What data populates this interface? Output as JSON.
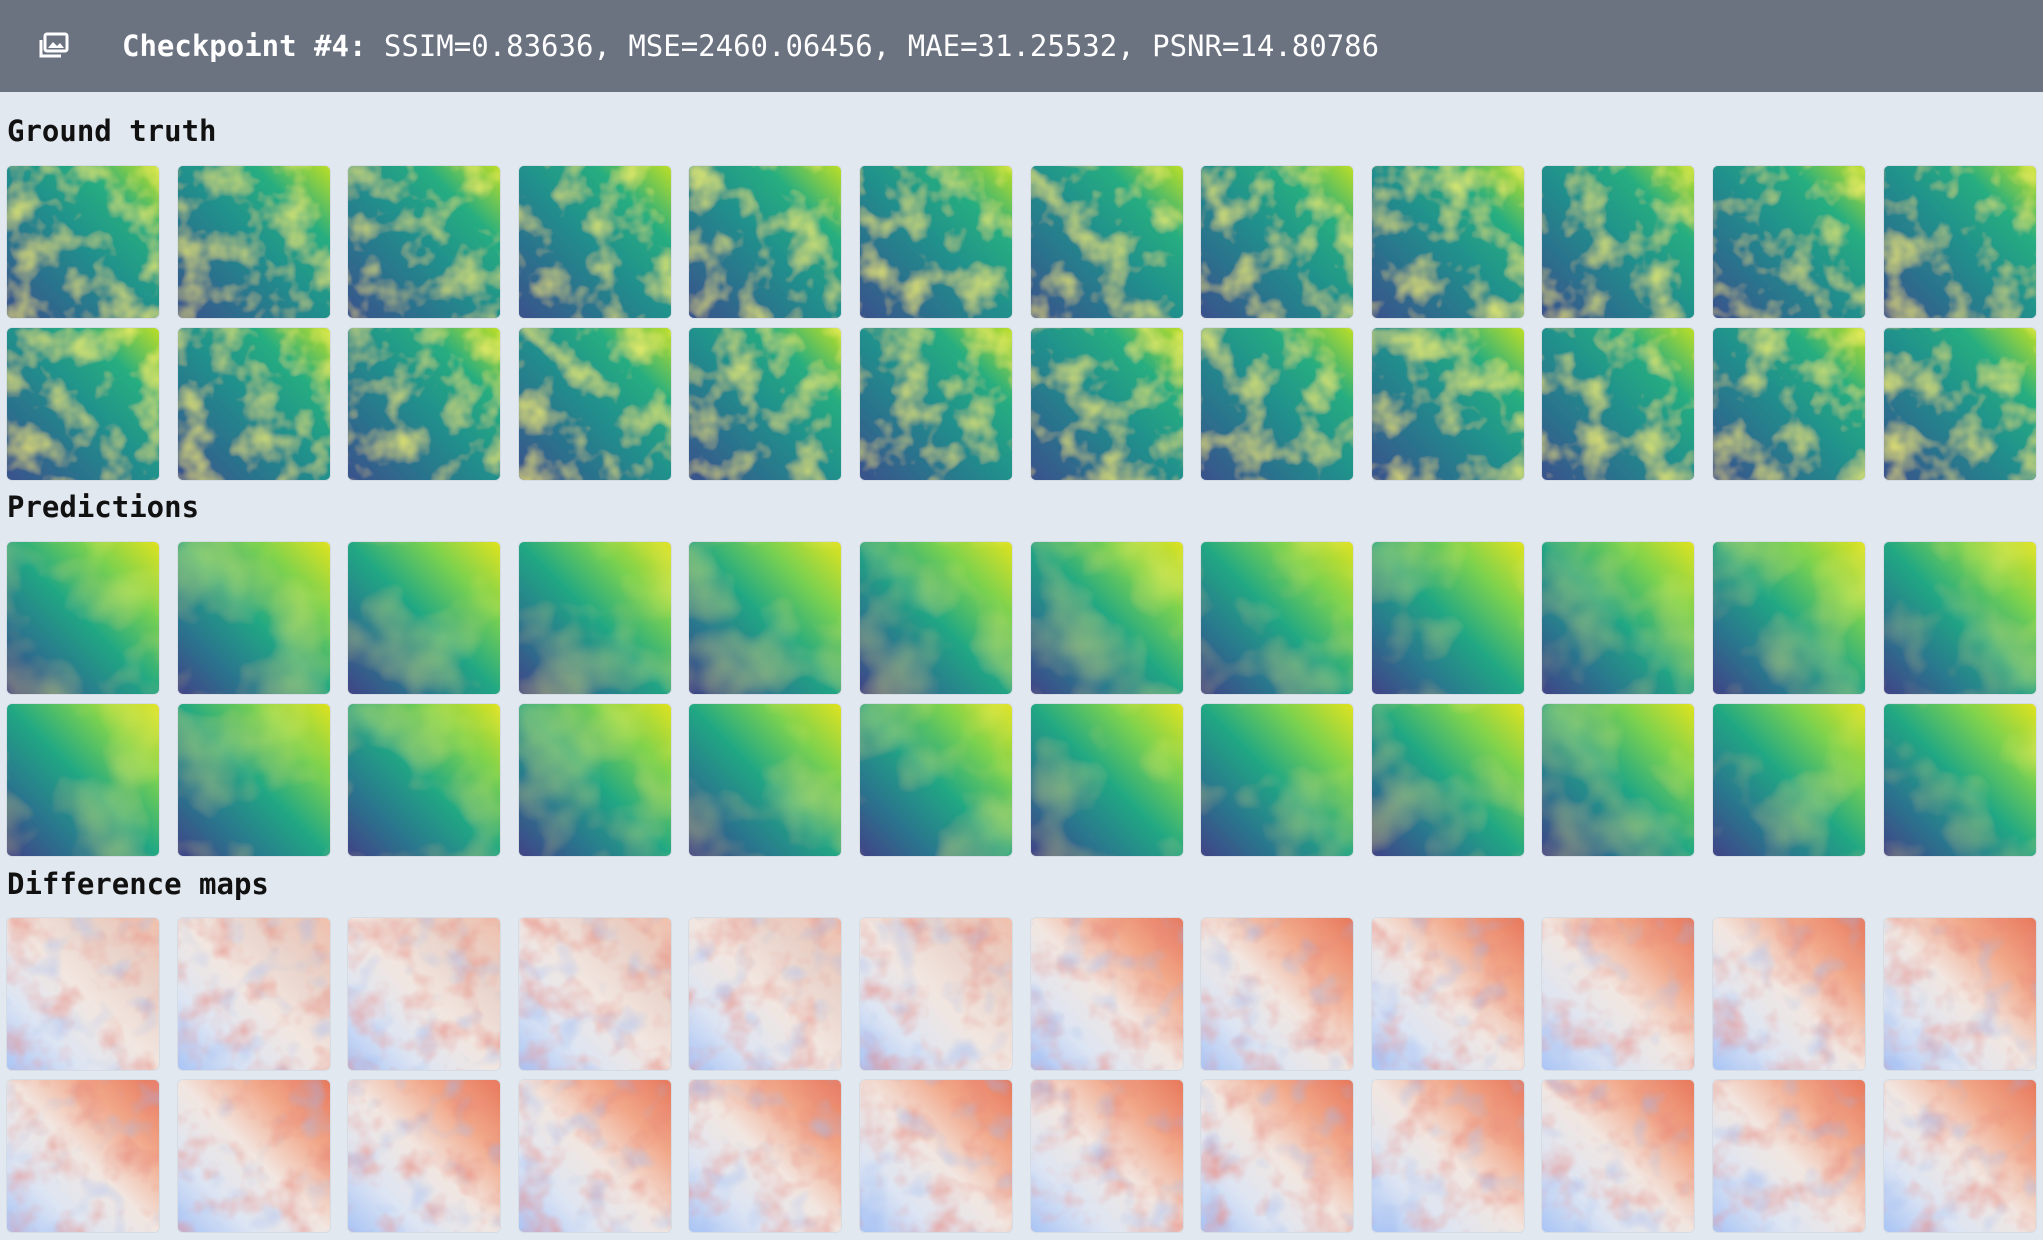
{
  "header": {
    "icon": "image-gallery-icon",
    "checkpoint_label": "Checkpoint #4:",
    "metrics_text": "SSIM=0.83636, MSE=2460.06456, MAE=31.25532, PSNR=14.80786"
  },
  "sections": [
    {
      "key": "ground_truth",
      "label": "Ground truth",
      "colormap": "viridis",
      "tile_count": 24
    },
    {
      "key": "predictions",
      "label": "Predictions",
      "colormap": "viridis",
      "tile_count": 24
    },
    {
      "key": "difference_maps",
      "label": "Difference maps",
      "colormap": "coolwarm",
      "tile_count": 24
    }
  ],
  "colors": {
    "header_bg": "#6b7280",
    "page_bg": "#e2e8f0",
    "viridis_dark": "#440154",
    "viridis_mid": "#21918c",
    "viridis_bright": "#fde725",
    "diff_cold": "#3b4cc0",
    "diff_neutral": "#f0f0f0",
    "diff_warm": "#b40426"
  }
}
